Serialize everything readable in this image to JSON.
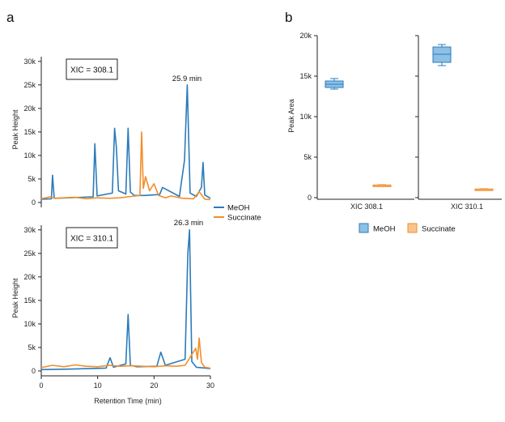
{
  "panels": {
    "a": "a",
    "b": "b"
  },
  "colors": {
    "meoh": "#2b7bba",
    "succinate": "#f28e2b",
    "meoh_fill": "#8cc0e6",
    "succinate_fill": "#f9c48c"
  },
  "chart_data": [
    {
      "type": "line",
      "panel": "a",
      "label_box": "XIC = 308.1",
      "annotation": "25.9 min",
      "ylabel": "Peak Height",
      "xlabel": "",
      "xlim": [
        0,
        30
      ],
      "ylim": [
        0,
        31000
      ],
      "y_tick_labels": [
        "0",
        "5k",
        "10k",
        "15k",
        "20k",
        "25k",
        "30k"
      ],
      "x_tick_labels": [],
      "series": [
        {
          "name": "MeOH",
          "x": [
            0,
            1.8,
            2.0,
            2.3,
            5,
            9.2,
            9.5,
            9.9,
            12.6,
            13.0,
            13.3,
            13.7,
            15.0,
            15.4,
            15.8,
            16.5,
            18.5,
            21.0,
            21.5,
            24.5,
            25.4,
            25.9,
            26.4,
            27.5,
            28.4,
            28.7,
            29.0,
            30
          ],
          "y": [
            700,
            800,
            5800,
            900,
            1000,
            1200,
            12500,
            1400,
            2000,
            15800,
            12000,
            2500,
            1800,
            15800,
            2200,
            1500,
            1500,
            1700,
            3200,
            1300,
            9000,
            25000,
            2000,
            1300,
            3200,
            8500,
            1600,
            900
          ]
        },
        {
          "name": "Succinate",
          "x": [
            0,
            1.5,
            2.5,
            4,
            6,
            8,
            10,
            12,
            14,
            16,
            17.5,
            17.8,
            18.1,
            18.5,
            19.2,
            20.0,
            20.8,
            22,
            23,
            25,
            27,
            28,
            29,
            30
          ],
          "y": [
            800,
            1200,
            900,
            1000,
            1100,
            800,
            1000,
            900,
            1000,
            1300,
            1500,
            15000,
            3000,
            5500,
            2500,
            4000,
            1500,
            1000,
            1400,
            900,
            800,
            2300,
            700,
            600
          ]
        }
      ]
    },
    {
      "type": "line",
      "panel": "a",
      "label_box": "XIC = 310.1",
      "annotation": "26.3 min",
      "ylabel": "Peak Height",
      "xlabel": "Retention Time (min)",
      "xlim": [
        0,
        30
      ],
      "ylim": [
        0,
        31000
      ],
      "y_tick_labels": [
        "0",
        "5k",
        "10k",
        "15k",
        "20k",
        "25k",
        "30k"
      ],
      "x_tick_labels": [
        "0",
        "10",
        "20",
        "30"
      ],
      "series": [
        {
          "name": "MeOH",
          "x": [
            0,
            5,
            11.5,
            12.2,
            12.8,
            15.0,
            15.4,
            15.8,
            17,
            20.5,
            21.2,
            22,
            25.5,
            26.0,
            26.3,
            26.7,
            27.5,
            30
          ],
          "y": [
            300,
            400,
            600,
            2800,
            800,
            1500,
            12000,
            1200,
            900,
            1000,
            4000,
            1200,
            2500,
            25000,
            30000,
            2000,
            800,
            500
          ]
        },
        {
          "name": "Succinate",
          "x": [
            0,
            2,
            4,
            6,
            8,
            10,
            12,
            14,
            16,
            18,
            20,
            22,
            24,
            25.5,
            27.4,
            27.7,
            28.0,
            28.4,
            29,
            30
          ],
          "y": [
            700,
            1200,
            900,
            1300,
            1000,
            900,
            1200,
            1000,
            1100,
            1000,
            900,
            1100,
            1000,
            1200,
            4800,
            2500,
            7000,
            1800,
            800,
            600
          ]
        }
      ]
    },
    {
      "type": "box",
      "panel": "b",
      "ylabel": "Peak Area",
      "ylim": [
        0,
        20000
      ],
      "y_tick_labels": [
        "0",
        "5k",
        "10k",
        "15k",
        "20k"
      ],
      "categories": [
        "XIC 308.1",
        "XIC 310.1"
      ],
      "series": [
        {
          "name": "MeOH",
          "boxes": [
            {
              "min": 13400,
              "q1": 13600,
              "median": 14000,
              "q3": 14400,
              "max": 14700
            },
            {
              "min": 16300,
              "q1": 16700,
              "median": 17700,
              "q3": 18600,
              "max": 18900
            }
          ]
        },
        {
          "name": "Succinate",
          "boxes": [
            {
              "min": 1420,
              "q1": 1460,
              "median": 1520,
              "q3": 1560,
              "max": 1600
            },
            {
              "min": 970,
              "q1": 1000,
              "median": 1040,
              "q3": 1070,
              "max": 1100
            }
          ]
        }
      ]
    }
  ]
}
